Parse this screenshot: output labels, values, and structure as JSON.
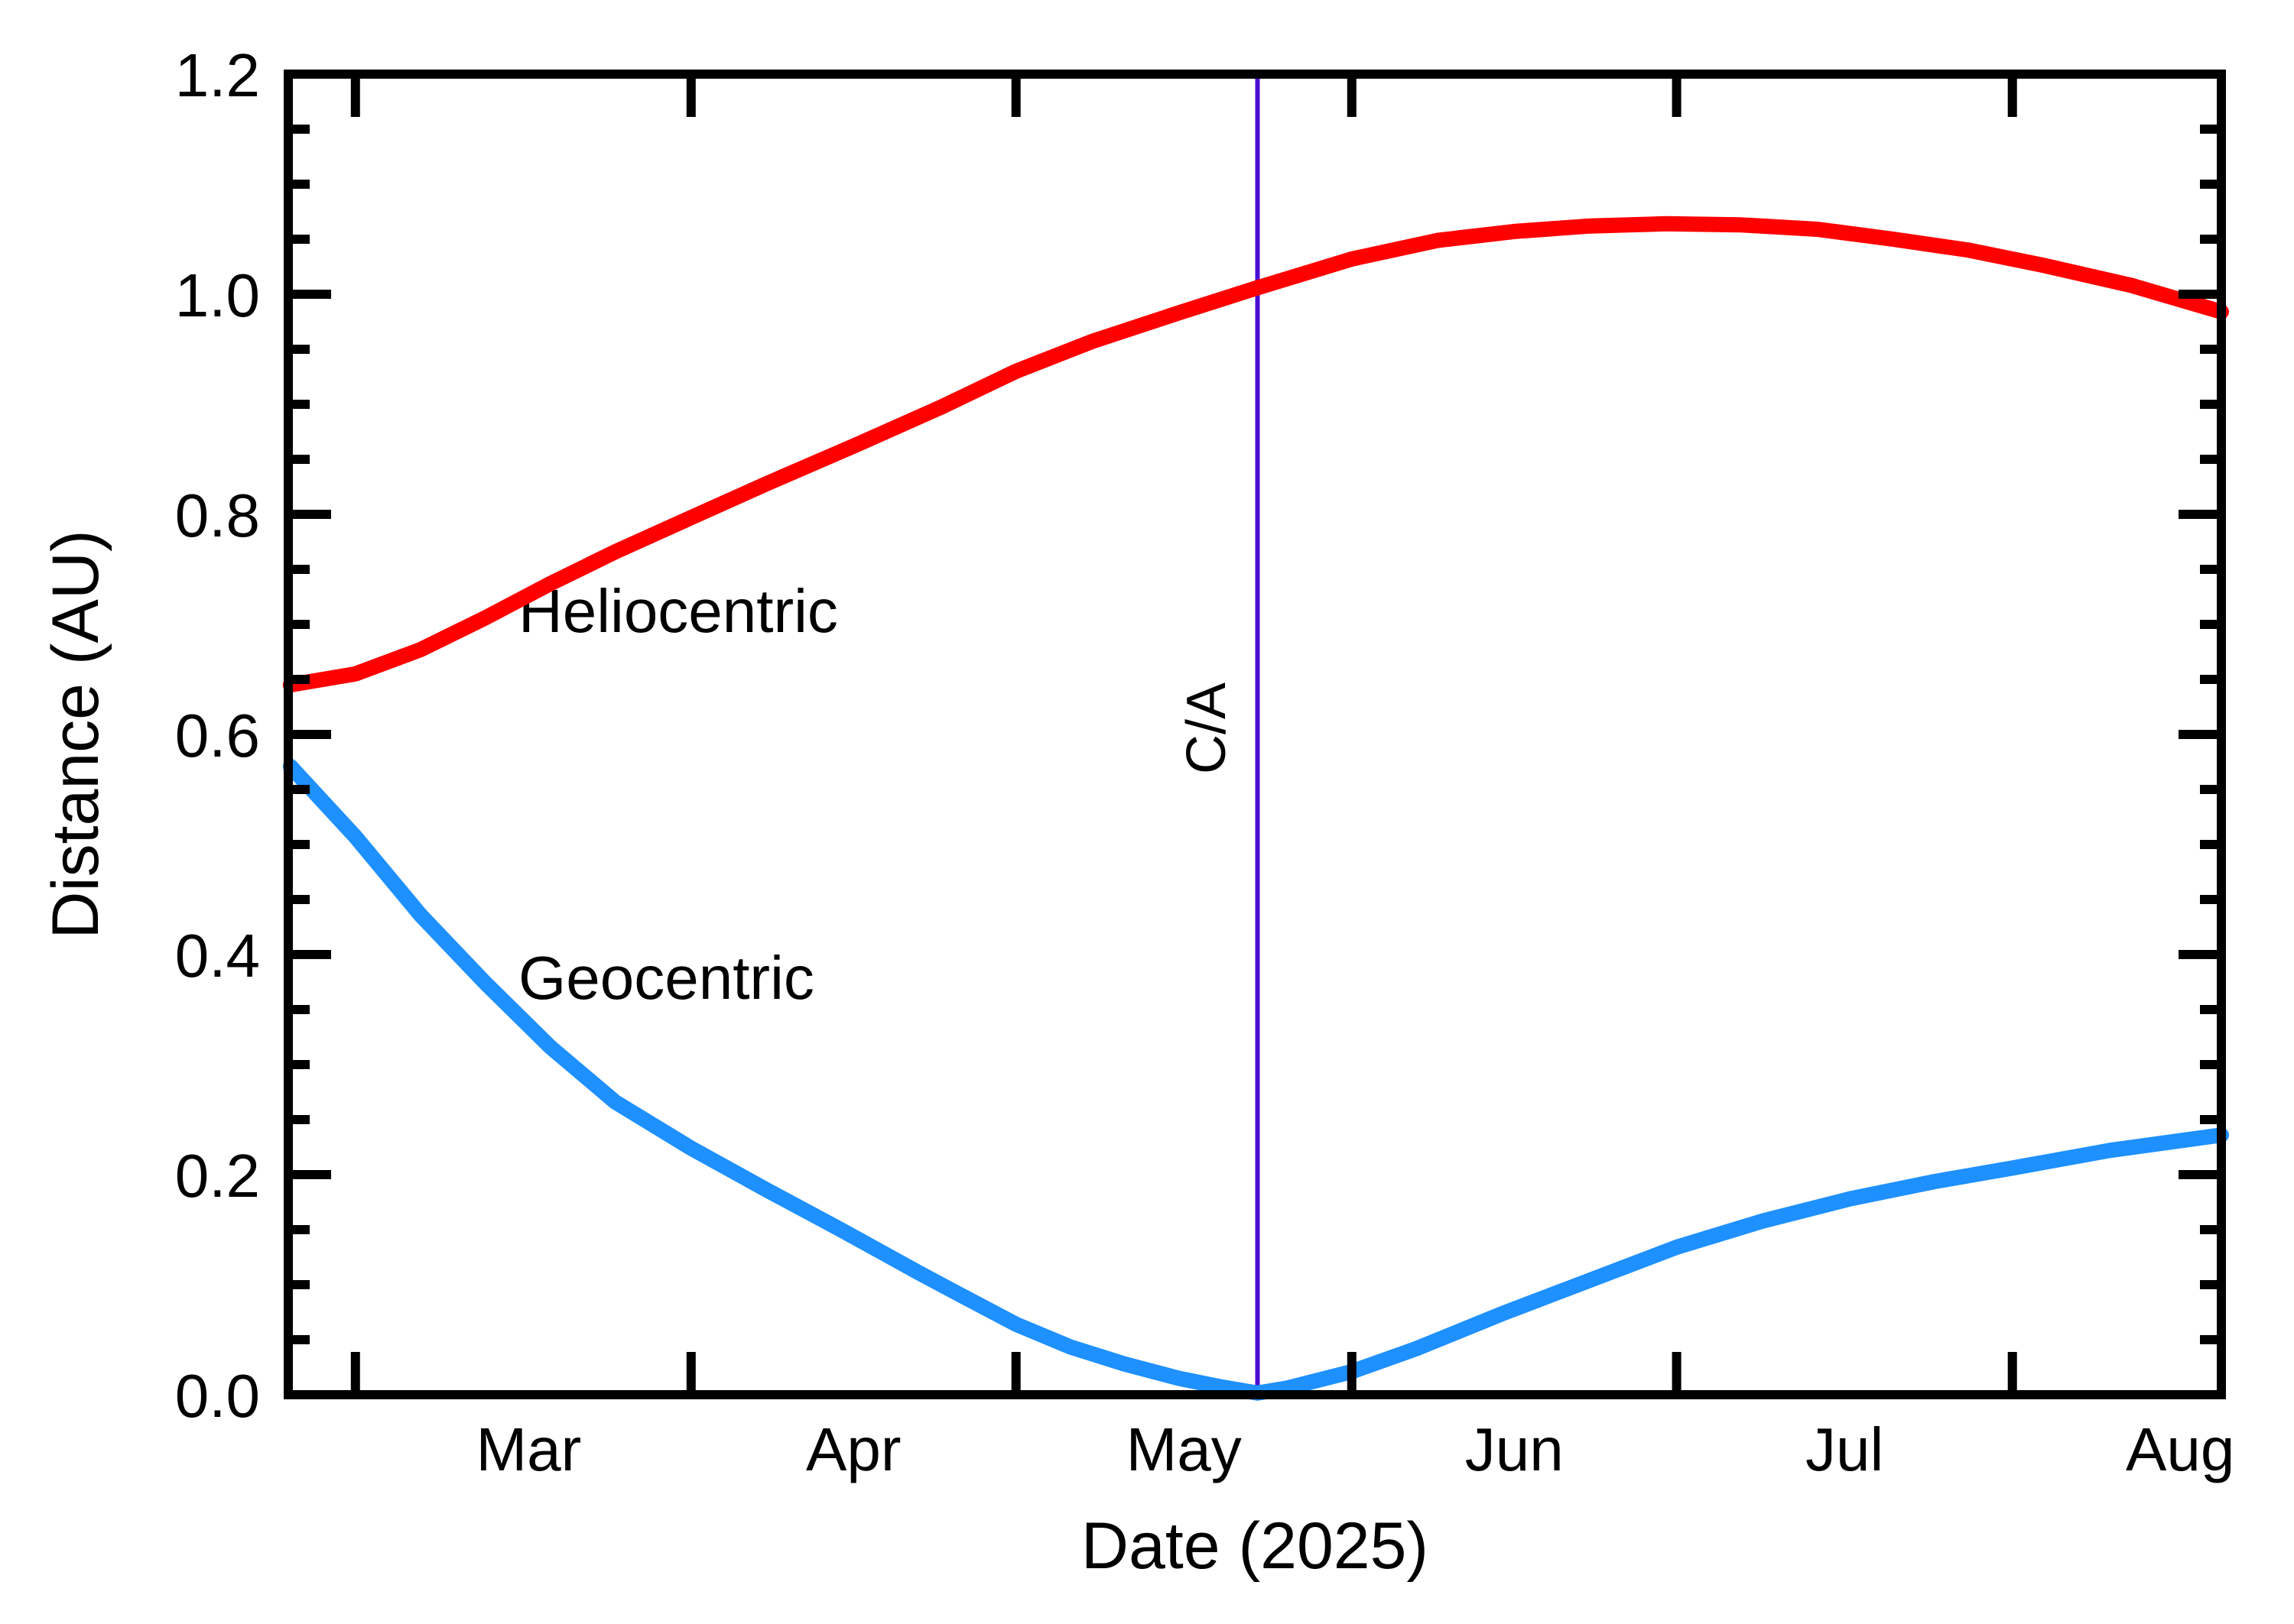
{
  "figure": {
    "background": "#ffffff"
  },
  "chart_data": {
    "type": "line",
    "title": "",
    "xlabel": "Date (2025)",
    "ylabel": "Distance (AU)",
    "ylim": [
      0.0,
      1.2
    ],
    "grid": false,
    "legend_position": "labels-on-curves",
    "axis_color": "#000000",
    "y_major_ticks": [
      0.0,
      0.2,
      0.4,
      0.6,
      0.8,
      1.0,
      1.2
    ],
    "y_tick_labels": [
      "0.0",
      "0.2",
      "0.4",
      "0.6",
      "0.8",
      "1.0",
      "1.2"
    ],
    "y_minor_tick_step": 0.05,
    "x_axis": {
      "unit": "day-of-year-2025",
      "domain": [
        53.8,
        232.3
      ],
      "month_ticks": [
        60,
        91,
        121,
        152,
        182,
        213
      ],
      "month_labels": [
        {
          "label": "Mar",
          "doy": 76.0
        },
        {
          "label": "Apr",
          "doy": 106.0
        },
        {
          "label": "May",
          "doy": 136.5
        },
        {
          "label": "Jun",
          "doy": 167.0
        },
        {
          "label": "Jul",
          "doy": 197.5
        },
        {
          "label": "Aug",
          "doy": 228.5
        }
      ]
    },
    "ca_line": {
      "label": "C/A",
      "doy": 143.3,
      "color": "#4b0dd2"
    },
    "series": [
      {
        "name": "Heliocentric",
        "color": "#ff0000",
        "points": [
          [
            54,
            0.645
          ],
          [
            60,
            0.655
          ],
          [
            66,
            0.677
          ],
          [
            72,
            0.706
          ],
          [
            78,
            0.737
          ],
          [
            84,
            0.766
          ],
          [
            91,
            0.797
          ],
          [
            98,
            0.828
          ],
          [
            106,
            0.862
          ],
          [
            114,
            0.897
          ],
          [
            121,
            0.93
          ],
          [
            128,
            0.957
          ],
          [
            136,
            0.983
          ],
          [
            143,
            1.005
          ],
          [
            152,
            1.032
          ],
          [
            160,
            1.049
          ],
          [
            167,
            1.057
          ],
          [
            174,
            1.062
          ],
          [
            181,
            1.064
          ],
          [
            188,
            1.063
          ],
          [
            195,
            1.059
          ],
          [
            202,
            1.05
          ],
          [
            209,
            1.04
          ],
          [
            216,
            1.026
          ],
          [
            224,
            1.008
          ],
          [
            232.3,
            0.984
          ]
        ]
      },
      {
        "name": "Geocentric",
        "color": "#1e90ff",
        "points": [
          [
            54,
            0.571
          ],
          [
            60,
            0.507
          ],
          [
            66,
            0.436
          ],
          [
            72,
            0.374
          ],
          [
            78,
            0.316
          ],
          [
            84,
            0.266
          ],
          [
            91,
            0.224
          ],
          [
            98,
            0.186
          ],
          [
            105,
            0.149
          ],
          [
            112,
            0.111
          ],
          [
            116,
            0.09
          ],
          [
            121,
            0.064
          ],
          [
            126,
            0.0435
          ],
          [
            131,
            0.028
          ],
          [
            136,
            0.015
          ],
          [
            140,
            0.007
          ],
          [
            143.3,
            0.0015
          ],
          [
            146,
            0.006
          ],
          [
            152,
            0.021
          ],
          [
            158,
            0.042
          ],
          [
            166,
            0.074
          ],
          [
            174,
            0.104
          ],
          [
            182,
            0.134
          ],
          [
            190,
            0.158
          ],
          [
            198,
            0.178
          ],
          [
            206,
            0.194
          ],
          [
            213,
            0.206
          ],
          [
            222,
            0.222
          ],
          [
            232.3,
            0.236
          ]
        ]
      }
    ]
  }
}
